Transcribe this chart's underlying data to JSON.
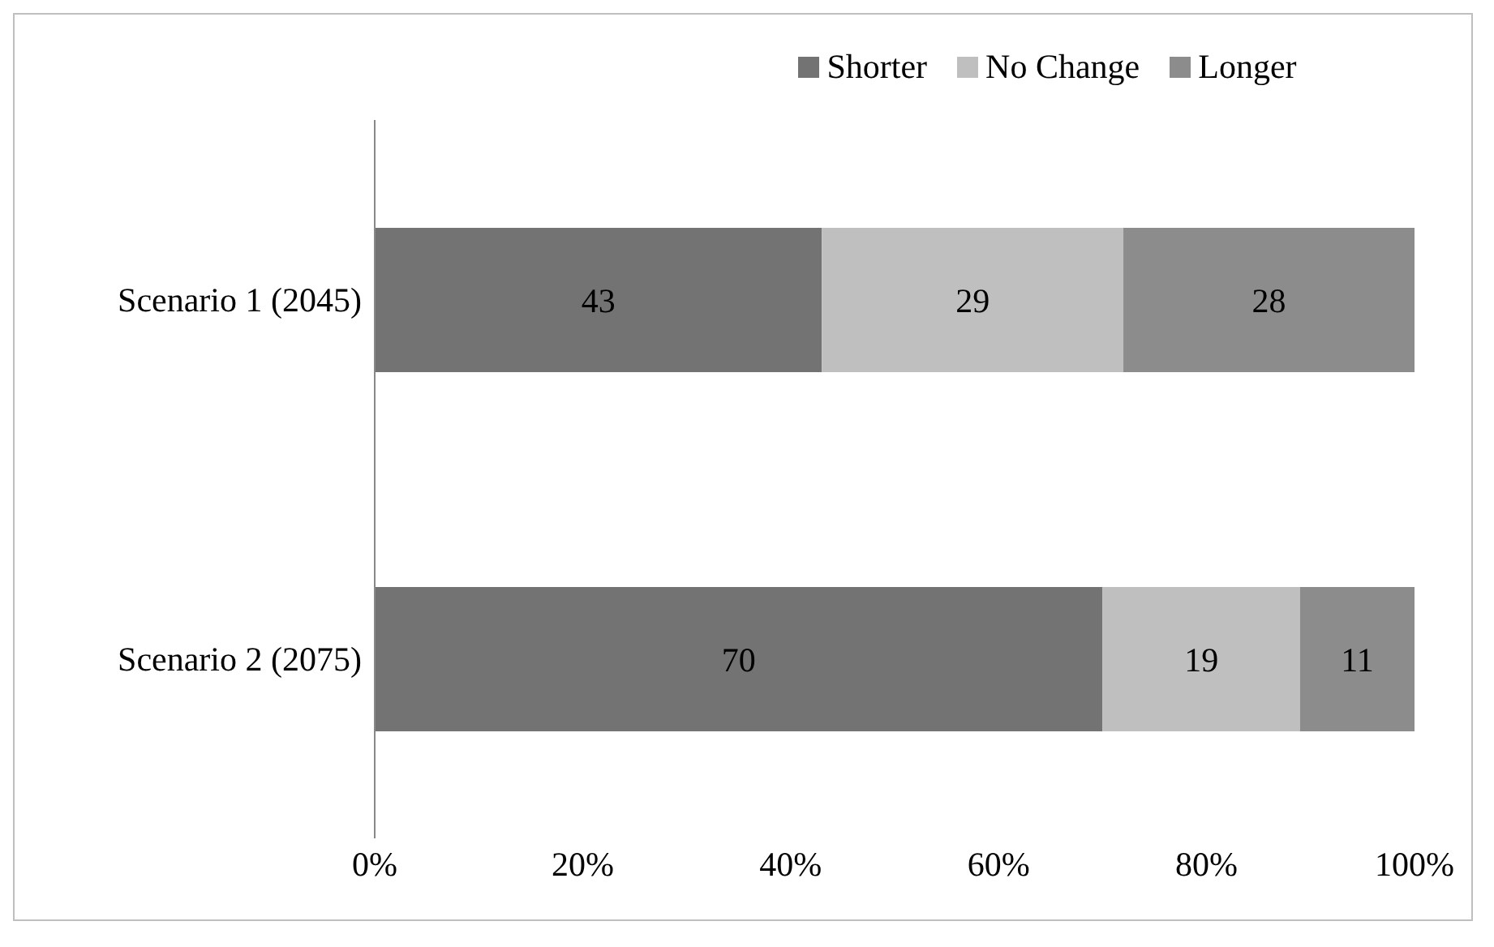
{
  "chart_data": {
    "type": "bar",
    "orientation": "horizontal",
    "stacked": true,
    "categories": [
      "Scenario 1 (2045)",
      "Scenario 2 (2075)"
    ],
    "series": [
      {
        "name": "Shorter",
        "color": "#737373",
        "values": [
          43,
          70
        ]
      },
      {
        "name": "No Change",
        "color": "#bfbfbf",
        "values": [
          29,
          19
        ]
      },
      {
        "name": "Longer",
        "color": "#8c8c8c",
        "values": [
          28,
          11
        ]
      }
    ],
    "xlim": [
      0,
      100
    ],
    "xticks": [
      {
        "value": 0,
        "label": "0%"
      },
      {
        "value": 20,
        "label": "20%"
      },
      {
        "value": 40,
        "label": "40%"
      },
      {
        "value": 60,
        "label": "60%"
      },
      {
        "value": 80,
        "label": "80%"
      },
      {
        "value": 100,
        "label": "100%"
      }
    ],
    "data_labels": true,
    "legend": "top",
    "grid": false
  }
}
